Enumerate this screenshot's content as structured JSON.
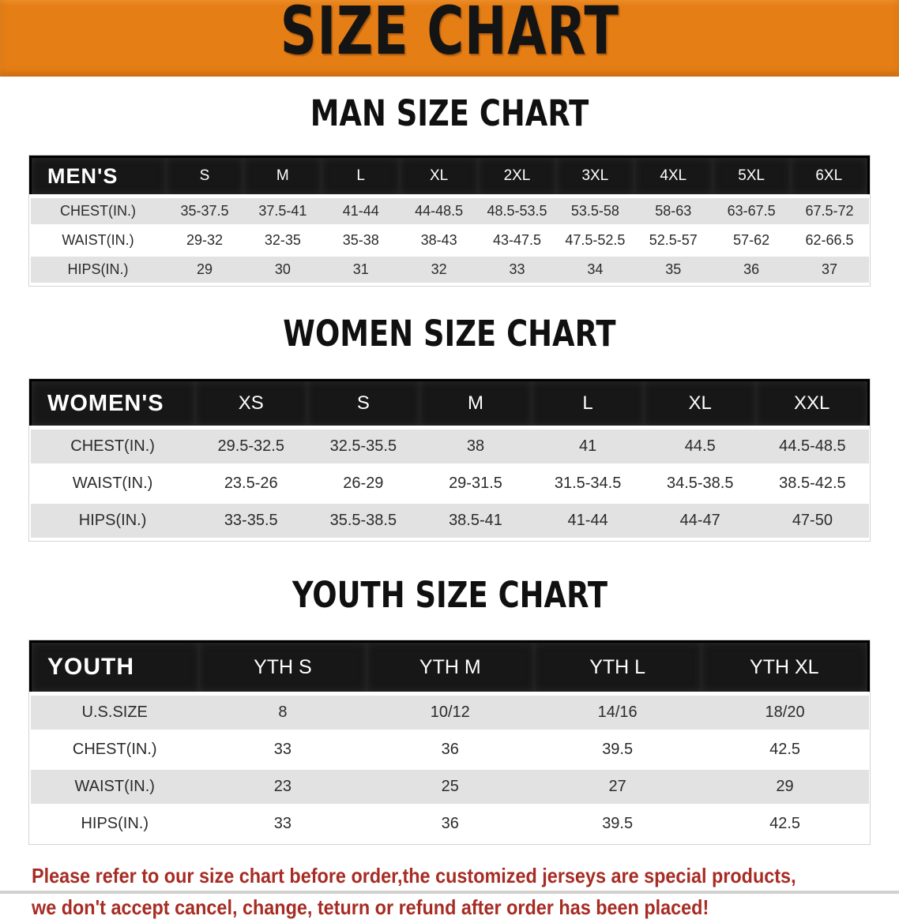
{
  "banner": {
    "title": "SIZE CHART",
    "background_color": "#e67e16",
    "text_color": "#141414"
  },
  "sections": [
    {
      "id": "men",
      "heading": "MAN SIZE CHART",
      "header_label": "MEN'S",
      "sizes": [
        "S",
        "M",
        "L",
        "XL",
        "2XL",
        "3XL",
        "4XL",
        "5XL",
        "6XL"
      ],
      "rows": [
        {
          "label": "CHEST(IN.)",
          "values": [
            "35-37.5",
            "37.5-41",
            "41-44",
            "44-48.5",
            "48.5-53.5",
            "53.5-58",
            "58-63",
            "63-67.5",
            "67.5-72"
          ]
        },
        {
          "label": "WAIST(IN.)",
          "values": [
            "29-32",
            "32-35",
            "35-38",
            "38-43",
            "43-47.5",
            "47.5-52.5",
            "52.5-57",
            "57-62",
            "62-66.5"
          ]
        },
        {
          "label": "HIPS(IN.)",
          "values": [
            "29",
            "30",
            "31",
            "32",
            "33",
            "34",
            "35",
            "36",
            "37"
          ]
        }
      ]
    },
    {
      "id": "women",
      "heading": "WOMEN SIZE CHART",
      "header_label": "WOMEN'S",
      "sizes": [
        "XS",
        "S",
        "M",
        "L",
        "XL",
        "XXL"
      ],
      "rows": [
        {
          "label": "CHEST(IN.)",
          "values": [
            "29.5-32.5",
            "32.5-35.5",
            "38",
            "41",
            "44.5",
            "44.5-48.5"
          ]
        },
        {
          "label": "WAIST(IN.)",
          "values": [
            "23.5-26",
            "26-29",
            "29-31.5",
            "31.5-34.5",
            "34.5-38.5",
            "38.5-42.5"
          ]
        },
        {
          "label": "HIPS(IN.)",
          "values": [
            "33-35.5",
            "35.5-38.5",
            "38.5-41",
            "41-44",
            "44-47",
            "47-50"
          ]
        }
      ]
    },
    {
      "id": "youth",
      "heading": "YOUTH SIZE CHART",
      "header_label": "YOUTH",
      "sizes": [
        "YTH S",
        "YTH M",
        "YTH L",
        "YTH XL"
      ],
      "rows": [
        {
          "label": "U.S.SIZE",
          "values": [
            "8",
            "10/12",
            "14/16",
            "18/20"
          ]
        },
        {
          "label": "CHEST(IN.)",
          "values": [
            "33",
            "36",
            "39.5",
            "42.5"
          ]
        },
        {
          "label": "WAIST(IN.)",
          "values": [
            "23",
            "25",
            "27",
            "29"
          ]
        },
        {
          "label": "HIPS(IN.)",
          "values": [
            "33",
            "36",
            "39.5",
            "42.5"
          ]
        }
      ]
    }
  ],
  "table_style": {
    "header_bar_color": "#171717",
    "header_text_color": "#ffffff",
    "stripe_color": "#e2e2e2"
  },
  "disclaimer": {
    "line1": "Please refer to our size chart before order,the customized jerseys are special products,",
    "line2": "we don't accept cancel, change, teturn or refund after order has been placed!",
    "text_color": "#a62c24"
  }
}
